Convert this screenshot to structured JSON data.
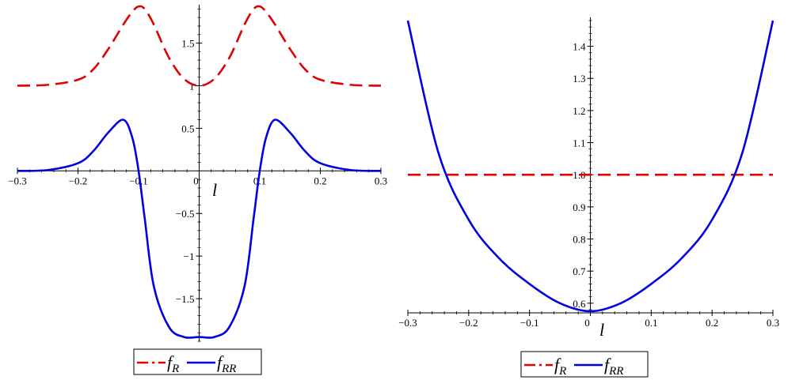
{
  "chart_data": [
    {
      "type": "line",
      "xlabel": "l",
      "xlim": [
        -0.3,
        0.3
      ],
      "ylim": [
        -2.0,
        1.95
      ],
      "xticks": [
        -0.3,
        -0.2,
        -0.1,
        0,
        0.1,
        0.2,
        0.3
      ],
      "xtick_labels": [
        "−0.3",
        "−0.2",
        "−0.1",
        "0",
        "0.1",
        "0.2",
        "0.3"
      ],
      "yticks": [
        -1.5,
        -1,
        -0.5,
        0.5,
        1,
        1.5
      ],
      "ytick_labels": [
        "−1.5",
        "−1",
        "−0.5",
        "0.5",
        "1",
        "1.5"
      ],
      "x": [
        -0.3,
        -0.25,
        -0.2,
        -0.175,
        -0.15,
        -0.125,
        -0.11,
        -0.1,
        -0.09,
        -0.075,
        -0.05,
        -0.025,
        0,
        0.025,
        0.05,
        0.075,
        0.09,
        0.1,
        0.11,
        0.125,
        0.15,
        0.175,
        0.2,
        0.25,
        0.3
      ],
      "series": [
        {
          "name": "f_R",
          "color": "#e00000",
          "dash": "dashed",
          "values": [
            1.0,
            1.01,
            1.07,
            1.19,
            1.43,
            1.72,
            1.87,
            1.93,
            1.9,
            1.72,
            1.33,
            1.08,
            1.0,
            1.08,
            1.33,
            1.72,
            1.9,
            1.93,
            1.87,
            1.72,
            1.43,
            1.19,
            1.07,
            1.01,
            1.0
          ]
        },
        {
          "name": "f_RR",
          "color": "#0000e0",
          "dash": "solid",
          "values": [
            0.0,
            0.01,
            0.09,
            0.23,
            0.45,
            0.6,
            0.38,
            0.0,
            -0.55,
            -1.35,
            -1.83,
            -1.95,
            -1.95,
            -1.95,
            -1.83,
            -1.35,
            -0.55,
            0.0,
            0.38,
            0.6,
            0.45,
            0.23,
            0.09,
            0.01,
            0.0
          ]
        }
      ],
      "legend": {
        "position": "bottom",
        "items": [
          {
            "main": "f",
            "sub": "R"
          },
          {
            "main": "f",
            "sub": "RR"
          }
        ]
      }
    },
    {
      "type": "line",
      "xlabel": "l",
      "xlim": [
        -0.3,
        0.3
      ],
      "ylim": [
        0.57,
        1.49
      ],
      "xticks": [
        -0.3,
        -0.2,
        -0.1,
        0,
        0.1,
        0.2,
        0.3
      ],
      "xtick_labels": [
        "−0.3",
        "−0.2",
        "−0.1",
        "0",
        "0.1",
        "0.2",
        "0.3"
      ],
      "yticks": [
        0.6,
        0.7,
        0.8,
        0.9,
        1.0,
        1.1,
        1.2,
        1.3,
        1.4
      ],
      "ytick_labels": [
        "0.6",
        "0.7",
        "0.8",
        "0.9",
        "1.0",
        "1.1",
        "1.2",
        "1.3",
        "1.4"
      ],
      "x": [
        -0.3,
        -0.25,
        -0.2,
        -0.15,
        -0.1,
        -0.05,
        0,
        0.05,
        0.1,
        0.15,
        0.2,
        0.25,
        0.3
      ],
      "series": [
        {
          "name": "f_R",
          "color": "#e00000",
          "dash": "dashed",
          "values": [
            1.0,
            1.0,
            1.0,
            1.0,
            1.0,
            1.0,
            1.0,
            1.0,
            1.0,
            1.0,
            1.0,
            1.0,
            1.0
          ]
        },
        {
          "name": "f_RR",
          "color": "#0000e0",
          "dash": "solid",
          "values": [
            1.48,
            1.07,
            0.86,
            0.74,
            0.66,
            0.6,
            0.575,
            0.6,
            0.66,
            0.74,
            0.86,
            1.07,
            1.48
          ]
        }
      ],
      "legend": {
        "position": "bottom",
        "items": [
          {
            "main": "f",
            "sub": "R"
          },
          {
            "main": "f",
            "sub": "RR"
          }
        ]
      }
    }
  ]
}
